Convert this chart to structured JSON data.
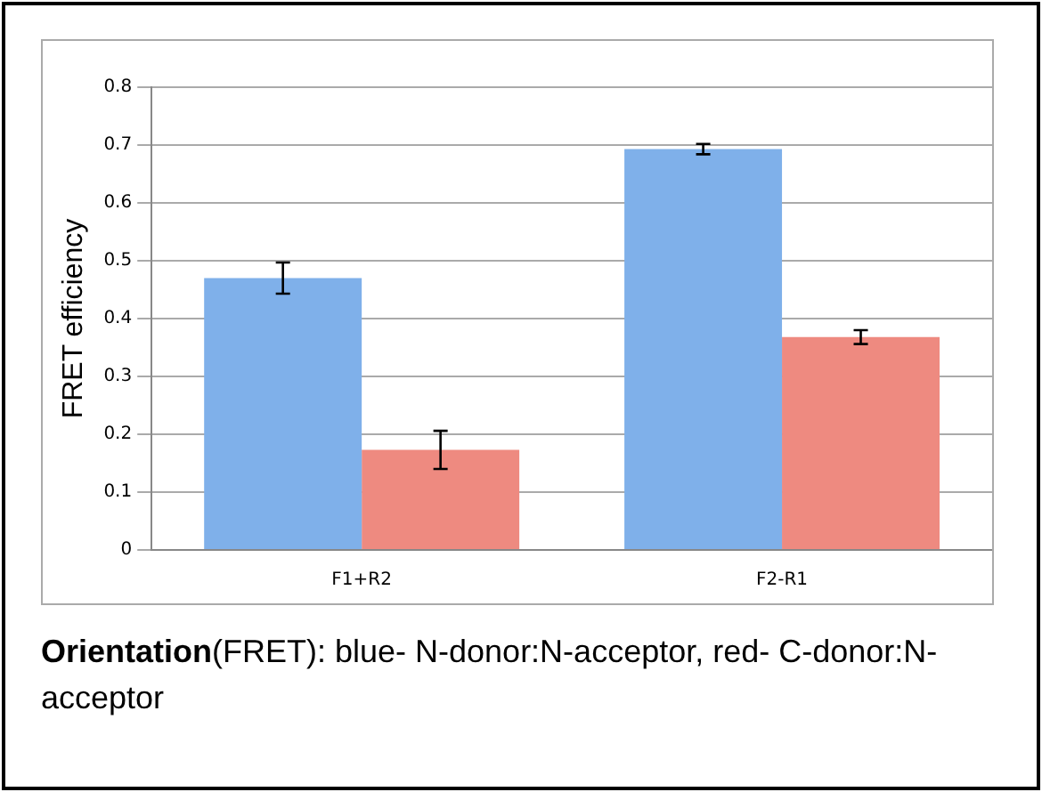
{
  "chart_data": {
    "type": "bar",
    "ylabel": "FRET efficiency",
    "categories": [
      "F1+R2",
      "F2-R1"
    ],
    "series": [
      {
        "color": "#7fb0ea",
        "values": [
          0.47,
          0.693
        ],
        "errors": [
          0.027,
          0.009
        ]
      },
      {
        "color": "#ee8a80",
        "values": [
          0.173,
          0.368
        ],
        "errors": [
          0.033,
          0.012
        ]
      }
    ],
    "ylim": [
      0,
      0.8
    ],
    "yticks": [
      0,
      0.1,
      0.2,
      0.3,
      0.4,
      0.5,
      0.6,
      0.7,
      0.8
    ],
    "grid": "y",
    "legend": false,
    "annotations": [
      "Orientation",
      "(FRET): blue- N-donor:N-acceptor, red- C-donor:N-acceptor"
    ]
  }
}
